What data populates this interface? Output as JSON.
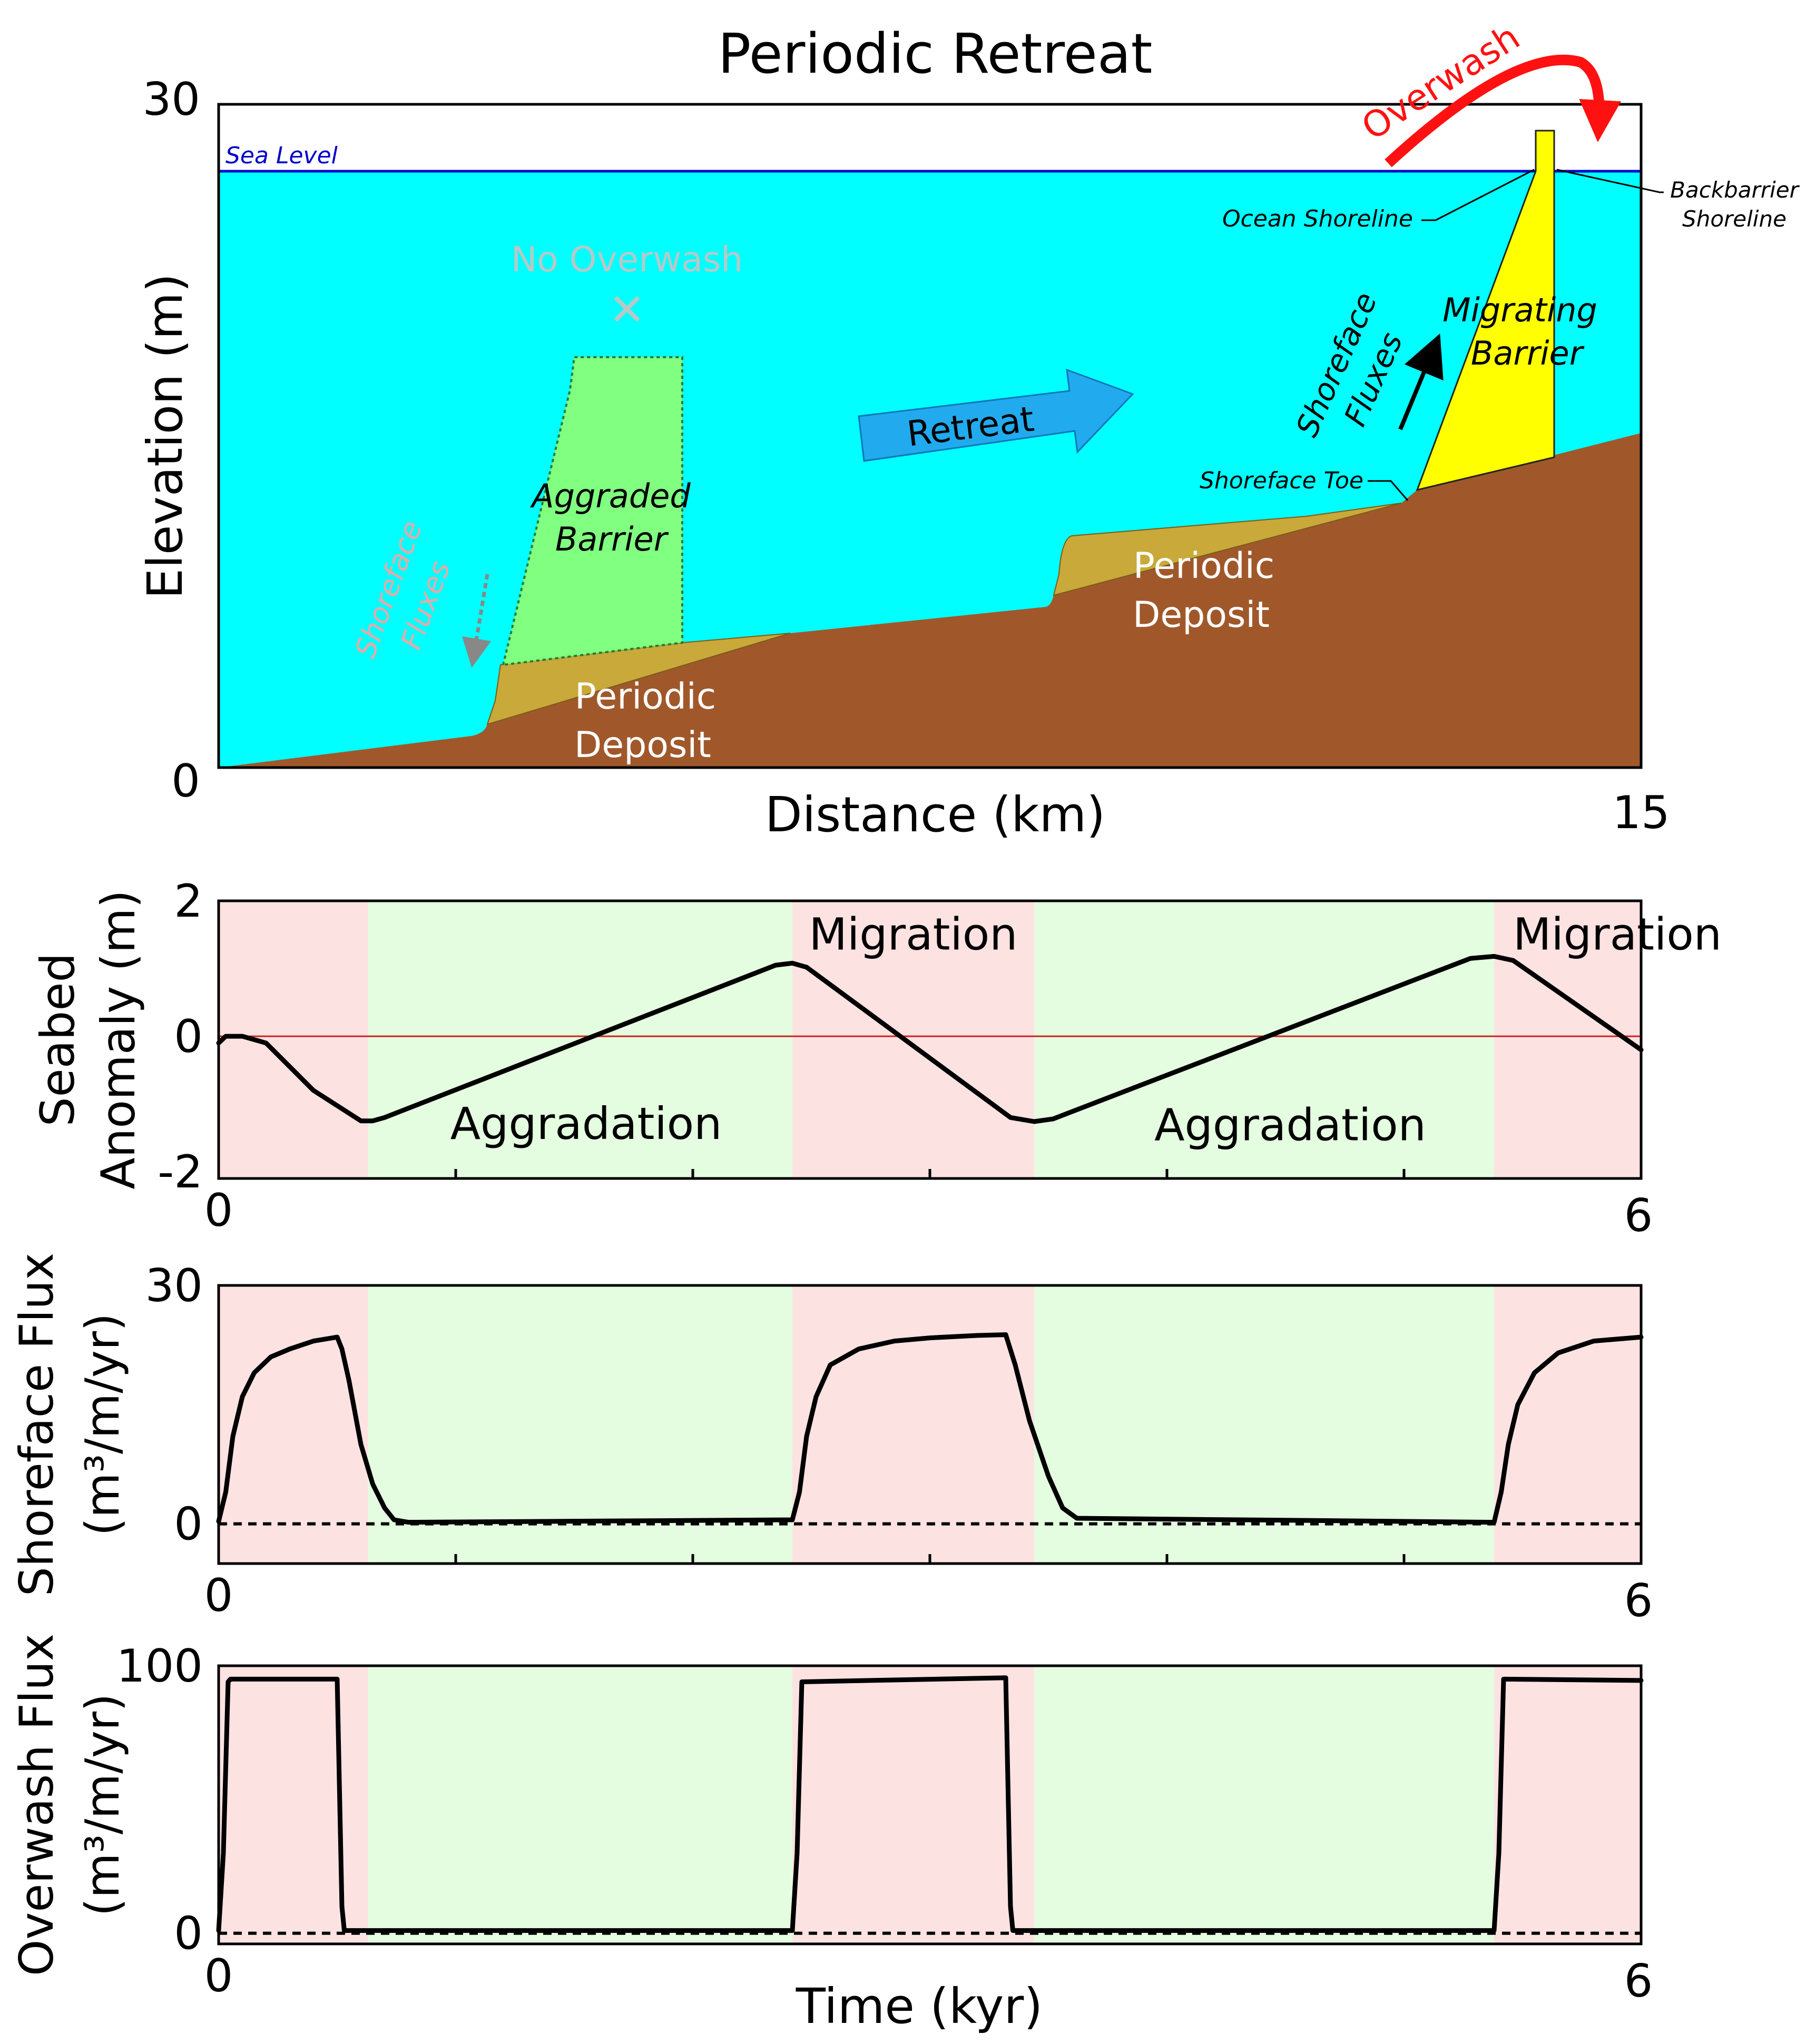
{
  "title": "Periodic Retreat",
  "colors": {
    "water": "#00ffff",
    "substrate": "#a0582b",
    "deposit": "#c8a93a",
    "aggraded_barrier": "#80ff80",
    "migrating_barrier": "#ffff00",
    "sea_level_line": "#0000cc",
    "retreat_arrow": "#22aaee",
    "overwash_arrow": "#ff1111",
    "migration_band": "#fde2e2",
    "aggradation_band": "#e4fde0"
  },
  "cross_section": {
    "labels": {
      "sea_level": "Sea Level",
      "overwash": "Overwash",
      "no_overwash": "No Overwash",
      "no_overwash_mark": "✕",
      "ocean_shoreline": "Ocean Shoreline",
      "backbarrier_shoreline_1": "Backbarrier",
      "backbarrier_shoreline_2": "Shoreline",
      "shoreface_toe": "Shoreface Toe",
      "migrating_barrier_1": "Migrating",
      "migrating_barrier_2": "Barrier",
      "shoreface_fluxes_right_1": "Shoreface",
      "shoreface_fluxes_right_2": "Fluxes",
      "shoreface_fluxes_left_1": "Shoreface",
      "shoreface_fluxes_left_2": "Fluxes",
      "aggraded_barrier_1": "Aggraded",
      "aggraded_barrier_2": "Barrier",
      "retreat": "Retreat",
      "periodic_deposit_left_1": "Periodic",
      "periodic_deposit_left_2": "Deposit",
      "periodic_deposit_right_1": "Periodic",
      "periodic_deposit_right_2": "Deposit"
    },
    "xlabel": "Distance (km)",
    "ylabel": "Elevation (m)",
    "x_ticks": [
      "15"
    ],
    "y_ticks": [
      "30",
      "0"
    ]
  },
  "chart_data": [
    {
      "type": "line",
      "ylabel_1": "Seabed",
      "ylabel_2": "Anomaly (m)",
      "xlim": [
        0,
        6
      ],
      "ylim": [
        -2.1,
        2
      ],
      "y_ticks": [
        "2",
        "0",
        "-2"
      ],
      "y_tick_values": [
        2,
        0,
        -2
      ],
      "x_tick_labels": [
        "0",
        "6"
      ],
      "minor_x_ticks": [
        1,
        2,
        3,
        4,
        5
      ],
      "reference_line": 0,
      "bands": [
        {
          "start": 0,
          "end": 0.63,
          "phase": "migration"
        },
        {
          "start": 0.63,
          "end": 2.42,
          "phase": "aggradation"
        },
        {
          "start": 2.42,
          "end": 3.44,
          "phase": "migration"
        },
        {
          "start": 3.44,
          "end": 5.38,
          "phase": "aggradation"
        },
        {
          "start": 5.38,
          "end": 6,
          "phase": "migration"
        }
      ],
      "band_labels": [
        {
          "text": "Migration",
          "x": 2.93,
          "y": 1.5
        },
        {
          "text": "Migration",
          "x": 5.9,
          "y": 1.5
        },
        {
          "text": "Aggradation",
          "x": 1.55,
          "y": -1.3
        },
        {
          "text": "Aggradation",
          "x": 4.52,
          "y": -1.32
        }
      ],
      "series": [
        {
          "x": [
            0,
            0.03,
            0.1,
            0.2,
            0.4,
            0.6,
            0.65,
            0.7,
            2.35,
            2.42,
            2.48,
            3.34,
            3.44,
            3.52,
            5.28,
            5.38,
            5.46,
            6
          ],
          "y": [
            -0.1,
            0.0,
            0.0,
            -0.1,
            -0.8,
            -1.25,
            -1.25,
            -1.2,
            1.05,
            1.08,
            1.02,
            -1.2,
            -1.26,
            -1.22,
            1.15,
            1.18,
            1.12,
            -0.2
          ]
        }
      ]
    },
    {
      "type": "line",
      "ylabel_1": "Shoreface Flux",
      "ylabel_2": "(m³/m/yr)",
      "xlim": [
        0,
        6
      ],
      "ylim": [
        -5,
        30
      ],
      "y_ticks": [
        "30",
        "0"
      ],
      "y_tick_values": [
        30,
        0
      ],
      "x_tick_labels": [
        "0",
        "6"
      ],
      "minor_x_ticks": [
        1,
        2,
        3,
        4,
        5
      ],
      "reference_line": 0,
      "bands": [
        {
          "start": 0,
          "end": 0.63,
          "phase": "migration"
        },
        {
          "start": 0.63,
          "end": 2.42,
          "phase": "aggradation"
        },
        {
          "start": 2.42,
          "end": 3.44,
          "phase": "migration"
        },
        {
          "start": 3.44,
          "end": 5.38,
          "phase": "aggradation"
        },
        {
          "start": 5.38,
          "end": 6,
          "phase": "migration"
        }
      ],
      "series": [
        {
          "x": [
            0,
            0.03,
            0.06,
            0.1,
            0.15,
            0.22,
            0.3,
            0.4,
            0.5,
            0.52,
            0.55,
            0.6,
            0.65,
            0.7,
            0.74,
            0.8,
            2.42,
            2.45,
            2.48,
            2.52,
            2.58,
            2.7,
            2.85,
            3.0,
            3.2,
            3.32,
            3.36,
            3.42,
            3.5,
            3.56,
            3.62,
            5.38,
            5.41,
            5.44,
            5.48,
            5.55,
            5.65,
            5.8,
            6
          ],
          "y": [
            0.3,
            4,
            11,
            16,
            19,
            21,
            22,
            23,
            23.5,
            22,
            18,
            10,
            5,
            2,
            0.5,
            0.2,
            0.5,
            4,
            11,
            16,
            20,
            22,
            23,
            23.4,
            23.7,
            23.8,
            20,
            13,
            6,
            2,
            0.7,
            0.2,
            4,
            10,
            15,
            19,
            21.5,
            23,
            23.5
          ]
        }
      ]
    },
    {
      "type": "line",
      "ylabel_1": "Overwash Flux",
      "ylabel_2": "(m³/m/yr)",
      "xlim": [
        0,
        6
      ],
      "ylim": [
        -4,
        100
      ],
      "y_ticks": [
        "100",
        "0"
      ],
      "y_tick_values": [
        100,
        0
      ],
      "x_tick_labels": [
        "0",
        "6"
      ],
      "minor_x_ticks": [],
      "reference_line": 0,
      "xlabel": "Time (kyr)",
      "bands": [
        {
          "start": 0,
          "end": 0.63,
          "phase": "migration"
        },
        {
          "start": 0.63,
          "end": 2.42,
          "phase": "aggradation"
        },
        {
          "start": 2.42,
          "end": 3.44,
          "phase": "migration"
        },
        {
          "start": 3.44,
          "end": 5.38,
          "phase": "aggradation"
        },
        {
          "start": 5.38,
          "end": 6,
          "phase": "migration"
        }
      ],
      "series": [
        {
          "x": [
            0,
            0.02,
            0.04,
            0.05,
            0.5,
            0.52,
            0.53,
            2.42,
            2.44,
            2.46,
            3.32,
            3.34,
            3.35,
            5.38,
            5.4,
            5.42,
            6
          ],
          "y": [
            1,
            30,
            94,
            95,
            95,
            10,
            1,
            1,
            30,
            94,
            95.5,
            10,
            1,
            1,
            30,
            95,
            94.5
          ]
        }
      ]
    }
  ]
}
